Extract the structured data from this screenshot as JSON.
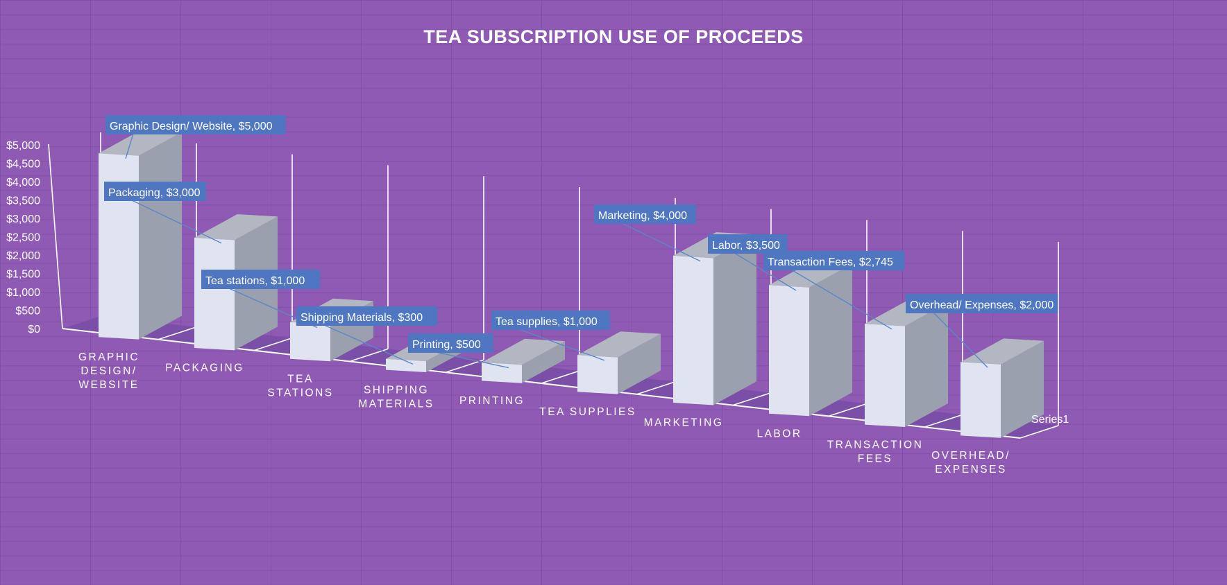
{
  "chart_data": {
    "type": "bar",
    "title": "TEA SUBSCRIPTION USE OF PROCEEDS",
    "categories": [
      "GRAPHIC DESIGN/ WEBSITE",
      "PACKAGING",
      "TEA STATIONS",
      "SHIPPING MATERIALS",
      "PRINTING",
      "TEA SUPPLIES",
      "MARKETING",
      "LABOR",
      "TRANSACTION FEES",
      "OVERHEAD/ EXPENSES"
    ],
    "category_lines": [
      [
        "GRAPHIC",
        "DESIGN/",
        "WEBSITE"
      ],
      [
        "PACKAGING"
      ],
      [
        "TEA",
        "STATIONS"
      ],
      [
        "SHIPPING",
        "MATERIALS"
      ],
      [
        "PRINTING"
      ],
      [
        "TEA SUPPLIES"
      ],
      [
        "MARKETING"
      ],
      [
        "LABOR"
      ],
      [
        "TRANSACTION",
        "FEES"
      ],
      [
        "OVERHEAD/",
        "EXPENSES"
      ]
    ],
    "series": [
      {
        "name": "Series1",
        "values": [
          5000,
          3000,
          1000,
          300,
          500,
          1000,
          4000,
          3500,
          2745,
          2000
        ]
      }
    ],
    "data_labels": [
      "Graphic Design/ Website, $5,000",
      "Packaging, $3,000",
      "Tea stations, $1,000",
      "Shipping Materials, $300",
      "Printing, $500",
      "Tea supplies, $1,000",
      "Marketing, $4,000",
      "Labor, $3,500",
      "Transaction Fees, $2,745",
      "Overhead/ Expenses, $2,000"
    ],
    "y_ticks": [
      "$0",
      "$500",
      "$1,000",
      "$1,500",
      "$2,000",
      "$2,500",
      "$3,000",
      "$3,500",
      "$4,000",
      "$4,500",
      "$5,000"
    ],
    "ylim": [
      0,
      5000
    ],
    "depth_label": "Series1",
    "legend": "none",
    "style": "3d-column",
    "colors": {
      "background": "#8f5ab3",
      "bar_front": "#e0e4f0",
      "bar_side": "#9aa0ad",
      "bar_top": "#b3b7c1",
      "floor": "#7b4fa8",
      "label_box": "#4f76c0",
      "axis": "#ffffff"
    }
  }
}
